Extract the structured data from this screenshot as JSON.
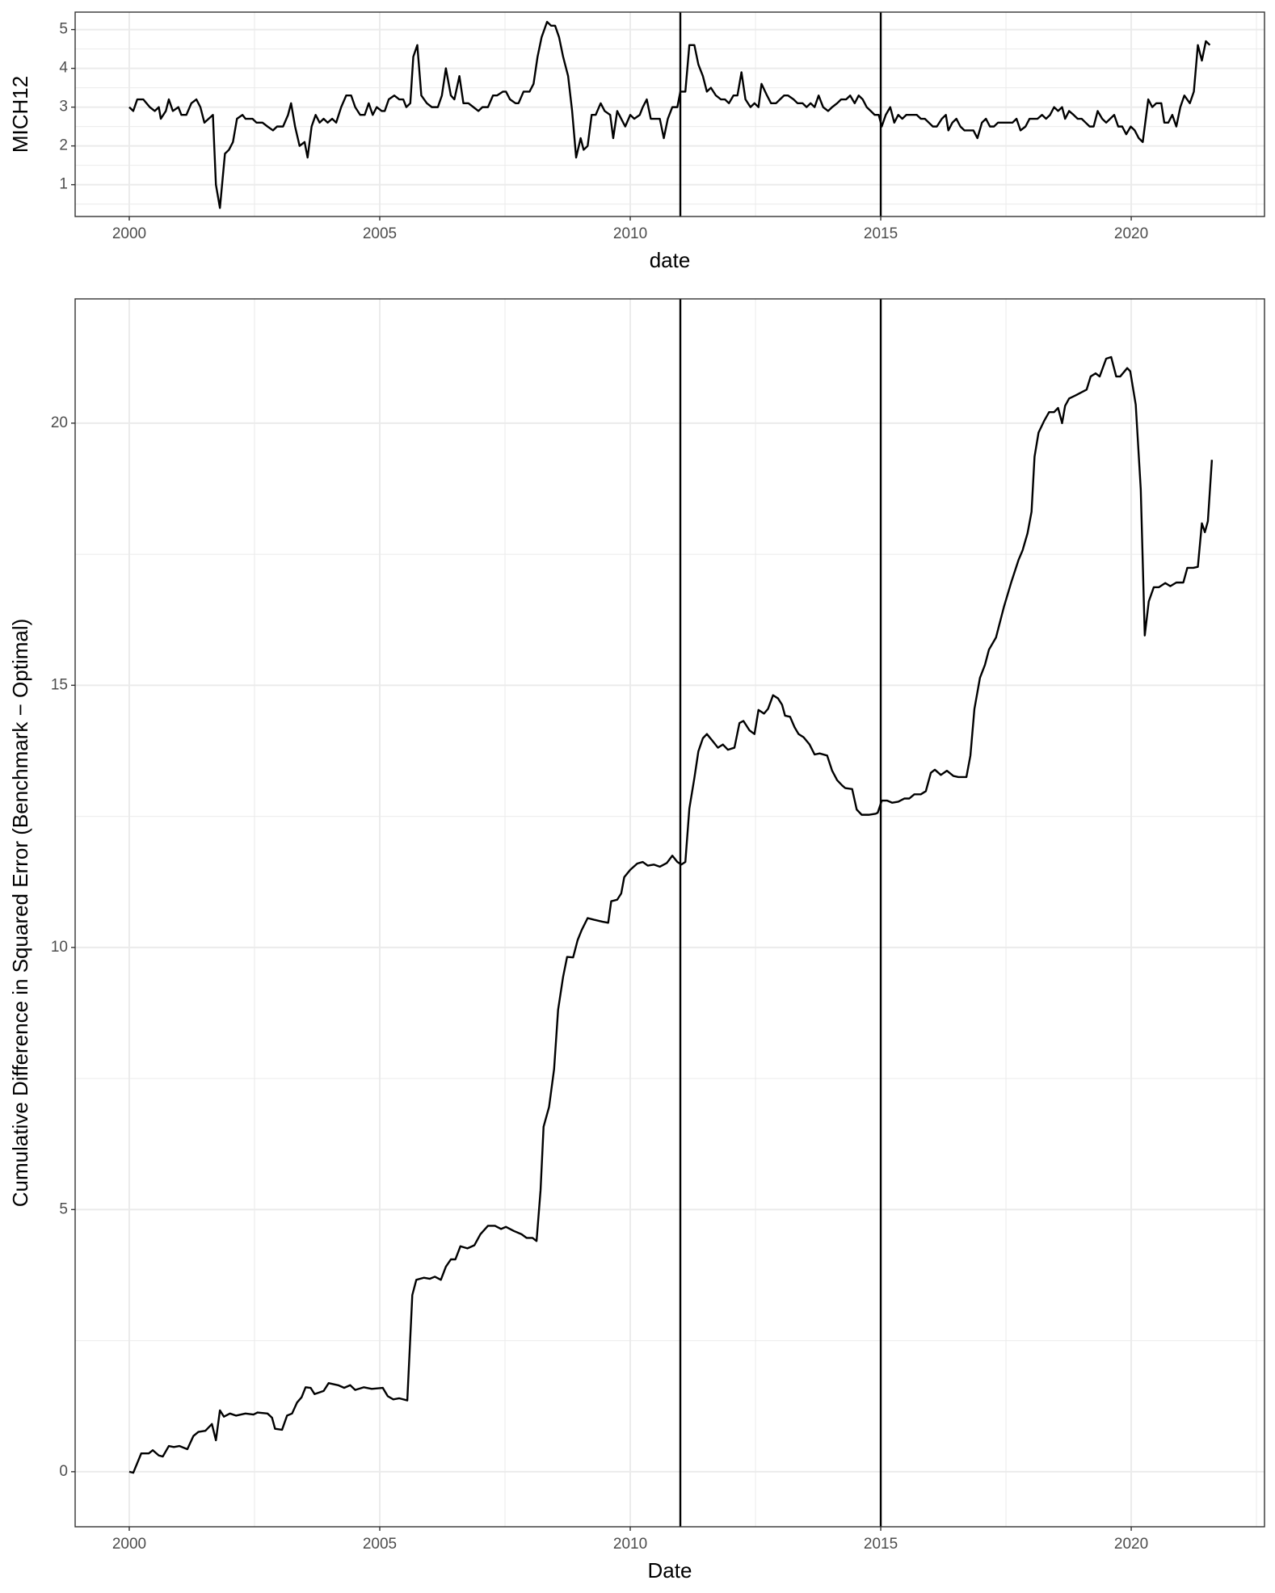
{
  "chart_data": [
    {
      "type": "line",
      "x_label": "date",
      "y_label": "MICH12",
      "color": "#000000",
      "grid": true,
      "xlim": [
        1998.92,
        2022.66
      ],
      "xticks": [
        2000,
        2005,
        2010,
        2015,
        2020
      ],
      "ylim": [
        0.18,
        5.45
      ],
      "yticks": [
        1,
        2,
        3,
        4,
        5
      ],
      "vlines": [
        2011,
        2015
      ],
      "x": [
        2000.0,
        2000.08,
        2000.16,
        2000.28,
        2000.41,
        2000.51,
        2000.59,
        2000.63,
        2000.73,
        2000.79,
        2000.87,
        2000.98,
        2001.04,
        2001.14,
        2001.24,
        2001.34,
        2001.42,
        2001.5,
        2001.67,
        2001.73,
        2001.81,
        2001.91,
        2001.99,
        2002.07,
        2002.15,
        2002.26,
        2002.32,
        2002.46,
        2002.54,
        2002.66,
        2002.76,
        2002.87,
        2002.95,
        2003.07,
        2003.17,
        2003.23,
        2003.31,
        2003.4,
        2003.5,
        2003.56,
        2003.64,
        2003.72,
        2003.8,
        2003.88,
        2003.96,
        2004.05,
        2004.13,
        2004.23,
        2004.33,
        2004.43,
        2004.51,
        2004.61,
        2004.7,
        2004.78,
        2004.86,
        2004.94,
        2005.04,
        2005.1,
        2005.18,
        2005.29,
        2005.39,
        2005.47,
        2005.53,
        2005.61,
        2005.67,
        2005.75,
        2005.83,
        2005.94,
        2006.04,
        2006.16,
        2006.24,
        2006.32,
        2006.42,
        2006.49,
        2006.59,
        2006.67,
        2006.77,
        2006.87,
        2006.97,
        2007.05,
        2007.16,
        2007.26,
        2007.34,
        2007.46,
        2007.52,
        2007.6,
        2007.71,
        2007.77,
        2007.87,
        2007.99,
        2008.07,
        2008.15,
        2008.23,
        2008.34,
        2008.42,
        2008.5,
        2008.58,
        2008.66,
        2008.76,
        2008.84,
        2008.92,
        2009.01,
        2009.07,
        2009.15,
        2009.23,
        2009.31,
        2009.41,
        2009.49,
        2009.6,
        2009.66,
        2009.74,
        2009.82,
        2009.9,
        2010.0,
        2010.08,
        2010.19,
        2010.25,
        2010.33,
        2010.41,
        2010.49,
        2010.59,
        2010.67,
        2010.75,
        2010.84,
        2010.94,
        2011.0,
        2011.1,
        2011.18,
        2011.28,
        2011.36,
        2011.45,
        2011.53,
        2011.61,
        2011.71,
        2011.81,
        2011.89,
        2011.97,
        2012.06,
        2012.14,
        2012.22,
        2012.3,
        2012.4,
        2012.48,
        2012.56,
        2012.62,
        2012.73,
        2012.81,
        2012.91,
        2012.99,
        2013.07,
        2013.15,
        2013.26,
        2013.34,
        2013.44,
        2013.52,
        2013.6,
        2013.68,
        2013.76,
        2013.85,
        2013.95,
        2014.03,
        2014.13,
        2014.21,
        2014.31,
        2014.39,
        2014.48,
        2014.56,
        2014.64,
        2014.72,
        2014.8,
        2014.88,
        2014.96,
        2015.02,
        2015.1,
        2015.19,
        2015.27,
        2015.35,
        2015.43,
        2015.51,
        2015.63,
        2015.72,
        2015.8,
        2015.88,
        2015.96,
        2016.04,
        2016.12,
        2016.22,
        2016.3,
        2016.35,
        2016.43,
        2016.51,
        2016.59,
        2016.67,
        2016.75,
        2016.85,
        2016.93,
        2017.02,
        2017.1,
        2017.18,
        2017.26,
        2017.34,
        2017.44,
        2017.54,
        2017.63,
        2017.71,
        2017.79,
        2017.89,
        2017.97,
        2018.05,
        2018.13,
        2018.22,
        2018.3,
        2018.38,
        2018.46,
        2018.54,
        2018.62,
        2018.68,
        2018.76,
        2018.85,
        2018.93,
        2019.01,
        2019.09,
        2019.17,
        2019.25,
        2019.33,
        2019.42,
        2019.5,
        2019.58,
        2019.66,
        2019.74,
        2019.82,
        2019.9,
        2019.99,
        2020.07,
        2020.15,
        2020.23,
        2020.34,
        2020.42,
        2020.5,
        2020.6,
        2020.66,
        2020.74,
        2020.82,
        2020.9,
        2020.98,
        2021.06,
        2021.17,
        2021.25,
        2021.33,
        2021.41,
        2021.49,
        2021.57
      ],
      "values": [
        3.0,
        2.9,
        3.2,
        3.2,
        3.0,
        2.9,
        3.0,
        2.7,
        2.9,
        3.2,
        2.9,
        3.0,
        2.8,
        2.8,
        3.1,
        3.2,
        3.0,
        2.6,
        2.8,
        1.0,
        0.4,
        1.8,
        1.9,
        2.1,
        2.7,
        2.8,
        2.7,
        2.7,
        2.6,
        2.6,
        2.5,
        2.4,
        2.5,
        2.5,
        2.8,
        3.1,
        2.5,
        2.0,
        2.1,
        1.7,
        2.5,
        2.8,
        2.6,
        2.7,
        2.6,
        2.7,
        2.6,
        3.0,
        3.3,
        3.3,
        3.0,
        2.8,
        2.8,
        3.1,
        2.8,
        3.0,
        2.9,
        2.9,
        3.2,
        3.3,
        3.2,
        3.2,
        3.0,
        3.1,
        4.3,
        4.6,
        3.3,
        3.1,
        3.0,
        3.0,
        3.3,
        4.0,
        3.3,
        3.2,
        3.8,
        3.1,
        3.1,
        3.0,
        2.9,
        3.0,
        3.0,
        3.3,
        3.3,
        3.4,
        3.4,
        3.2,
        3.1,
        3.1,
        3.4,
        3.4,
        3.6,
        4.3,
        4.8,
        5.2,
        5.1,
        5.1,
        4.8,
        4.3,
        3.8,
        2.9,
        1.7,
        2.2,
        1.9,
        2.0,
        2.8,
        2.8,
        3.1,
        2.9,
        2.8,
        2.2,
        2.9,
        2.7,
        2.5,
        2.8,
        2.7,
        2.8,
        3.0,
        3.2,
        2.7,
        2.7,
        2.7,
        2.2,
        2.7,
        3.0,
        3.0,
        3.4,
        3.4,
        4.6,
        4.6,
        4.1,
        3.8,
        3.4,
        3.5,
        3.3,
        3.2,
        3.2,
        3.1,
        3.3,
        3.3,
        3.9,
        3.2,
        3.0,
        3.1,
        3.0,
        3.6,
        3.3,
        3.1,
        3.1,
        3.2,
        3.3,
        3.3,
        3.2,
        3.1,
        3.1,
        3.0,
        3.1,
        3.0,
        3.3,
        3.0,
        2.9,
        3.0,
        3.1,
        3.2,
        3.2,
        3.3,
        3.1,
        3.3,
        3.2,
        3.0,
        2.9,
        2.8,
        2.8,
        2.5,
        2.8,
        3.0,
        2.6,
        2.8,
        2.7,
        2.8,
        2.8,
        2.8,
        2.7,
        2.7,
        2.6,
        2.5,
        2.5,
        2.7,
        2.8,
        2.4,
        2.6,
        2.7,
        2.5,
        2.4,
        2.4,
        2.4,
        2.2,
        2.6,
        2.7,
        2.5,
        2.5,
        2.6,
        2.6,
        2.6,
        2.6,
        2.7,
        2.4,
        2.5,
        2.7,
        2.7,
        2.7,
        2.8,
        2.7,
        2.8,
        3.0,
        2.9,
        3.0,
        2.7,
        2.9,
        2.8,
        2.7,
        2.7,
        2.6,
        2.5,
        2.5,
        2.9,
        2.7,
        2.6,
        2.7,
        2.8,
        2.5,
        2.5,
        2.3,
        2.5,
        2.4,
        2.2,
        2.1,
        3.2,
        3.0,
        3.1,
        3.1,
        2.6,
        2.6,
        2.8,
        2.5,
        3.0,
        3.3,
        3.1,
        3.4,
        4.6,
        4.2,
        4.7,
        4.6
      ]
    },
    {
      "type": "line",
      "x_label": "Date",
      "y_label": "Cumulative Difference in Squared Error (Benchmark − Optimal)",
      "color": "#000000",
      "grid": true,
      "xlim": [
        1998.92,
        2022.66
      ],
      "xticks": [
        2000,
        2005,
        2010,
        2015,
        2020
      ],
      "ylim": [
        -1.05,
        22.37
      ],
      "yticks": [
        0,
        5,
        10,
        15,
        20
      ],
      "vlines": [
        2011,
        2015
      ],
      "x": [
        2000.0,
        2000.08,
        2000.24,
        2000.39,
        2000.47,
        2000.59,
        2000.67,
        2000.79,
        2000.89,
        2001.0,
        2001.16,
        2001.28,
        2001.38,
        2001.52,
        2001.65,
        2001.73,
        2001.81,
        2001.89,
        2002.01,
        2002.13,
        2002.32,
        2002.48,
        2002.56,
        2002.76,
        2002.85,
        2002.91,
        2003.05,
        2003.15,
        2003.25,
        2003.35,
        2003.44,
        2003.52,
        2003.62,
        2003.7,
        2003.88,
        2003.98,
        2004.17,
        2004.29,
        2004.41,
        2004.51,
        2004.68,
        2004.84,
        2005.06,
        2005.16,
        2005.27,
        2005.39,
        2005.55,
        2005.65,
        2005.73,
        2005.88,
        2006.0,
        2006.1,
        2006.22,
        2006.32,
        2006.42,
        2006.51,
        2006.61,
        2006.75,
        2006.89,
        2007.01,
        2007.16,
        2007.3,
        2007.42,
        2007.52,
        2007.68,
        2007.83,
        2007.93,
        2008.05,
        2008.13,
        2008.21,
        2008.27,
        2008.38,
        2008.48,
        2008.56,
        2008.66,
        2008.74,
        2008.86,
        2008.95,
        2009.03,
        2009.15,
        2009.27,
        2009.45,
        2009.56,
        2009.62,
        2009.74,
        2009.82,
        2009.88,
        2010.0,
        2010.14,
        2010.25,
        2010.35,
        2010.47,
        2010.59,
        2010.73,
        2010.84,
        2010.94,
        2011.02,
        2011.1,
        2011.18,
        2011.28,
        2011.36,
        2011.45,
        2011.53,
        2011.65,
        2011.75,
        2011.85,
        2011.95,
        2012.08,
        2012.18,
        2012.26,
        2012.38,
        2012.48,
        2012.56,
        2012.67,
        2012.75,
        2012.85,
        2012.95,
        2013.03,
        2013.09,
        2013.19,
        2013.28,
        2013.36,
        2013.46,
        2013.58,
        2013.68,
        2013.78,
        2013.93,
        2014.03,
        2014.13,
        2014.23,
        2014.29,
        2014.43,
        2014.52,
        2014.62,
        2014.76,
        2014.9,
        2014.94,
        2015.02,
        2015.13,
        2015.23,
        2015.35,
        2015.47,
        2015.57,
        2015.67,
        2015.8,
        2015.9,
        2016.0,
        2016.08,
        2016.2,
        2016.32,
        2016.45,
        2016.55,
        2016.71,
        2016.79,
        2016.87,
        2016.98,
        2017.08,
        2017.16,
        2017.3,
        2017.46,
        2017.61,
        2017.75,
        2017.83,
        2017.93,
        2018.01,
        2018.07,
        2018.15,
        2018.26,
        2018.36,
        2018.46,
        2018.54,
        2018.62,
        2018.68,
        2018.76,
        2018.89,
        2018.99,
        2019.11,
        2019.19,
        2019.29,
        2019.37,
        2019.5,
        2019.6,
        2019.7,
        2019.78,
        2019.92,
        2019.98,
        2020.09,
        2020.19,
        2020.27,
        2020.35,
        2020.45,
        2020.55,
        2020.68,
        2020.78,
        2020.9,
        2021.04,
        2021.12,
        2021.24,
        2021.33,
        2021.41,
        2021.47,
        2021.53,
        2021.61
      ],
      "values": [
        0.0,
        -0.02,
        0.35,
        0.35,
        0.41,
        0.31,
        0.29,
        0.49,
        0.47,
        0.49,
        0.43,
        0.68,
        0.76,
        0.78,
        0.91,
        0.6,
        1.17,
        1.05,
        1.11,
        1.07,
        1.11,
        1.09,
        1.13,
        1.11,
        1.03,
        0.82,
        0.8,
        1.07,
        1.11,
        1.32,
        1.42,
        1.61,
        1.6,
        1.48,
        1.54,
        1.69,
        1.65,
        1.6,
        1.65,
        1.56,
        1.61,
        1.58,
        1.6,
        1.44,
        1.38,
        1.4,
        1.36,
        3.37,
        3.66,
        3.7,
        3.68,
        3.72,
        3.66,
        3.91,
        4.05,
        4.05,
        4.3,
        4.26,
        4.32,
        4.53,
        4.69,
        4.69,
        4.63,
        4.67,
        4.59,
        4.53,
        4.46,
        4.46,
        4.4,
        5.37,
        6.58,
        6.96,
        7.68,
        8.81,
        9.44,
        9.82,
        9.81,
        10.14,
        10.33,
        10.56,
        10.53,
        10.49,
        10.47,
        10.88,
        10.91,
        11.03,
        11.34,
        11.48,
        11.6,
        11.63,
        11.56,
        11.58,
        11.54,
        11.61,
        11.75,
        11.63,
        11.58,
        11.63,
        12.65,
        13.23,
        13.74,
        13.99,
        14.07,
        13.93,
        13.81,
        13.87,
        13.77,
        13.81,
        14.28,
        14.32,
        14.14,
        14.07,
        14.53,
        14.46,
        14.55,
        14.81,
        14.75,
        14.63,
        14.42,
        14.4,
        14.2,
        14.07,
        14.01,
        13.87,
        13.68,
        13.7,
        13.66,
        13.37,
        13.19,
        13.09,
        13.04,
        13.02,
        12.63,
        12.53,
        12.53,
        12.55,
        12.57,
        12.8,
        12.8,
        12.76,
        12.78,
        12.84,
        12.84,
        12.92,
        12.92,
        12.98,
        13.33,
        13.39,
        13.29,
        13.37,
        13.27,
        13.25,
        13.25,
        13.66,
        14.55,
        15.14,
        15.39,
        15.68,
        15.91,
        16.5,
        16.98,
        17.39,
        17.57,
        17.9,
        18.31,
        19.36,
        19.82,
        20.04,
        20.21,
        20.21,
        20.29,
        20.0,
        20.33,
        20.47,
        20.53,
        20.58,
        20.64,
        20.89,
        20.95,
        20.89,
        21.23,
        21.26,
        20.89,
        20.89,
        21.05,
        20.99,
        20.35,
        18.74,
        15.95,
        16.6,
        16.87,
        16.87,
        16.95,
        16.89,
        16.96,
        16.96,
        17.24,
        17.24,
        17.26,
        18.09,
        17.92,
        18.13,
        19.3
      ]
    }
  ]
}
